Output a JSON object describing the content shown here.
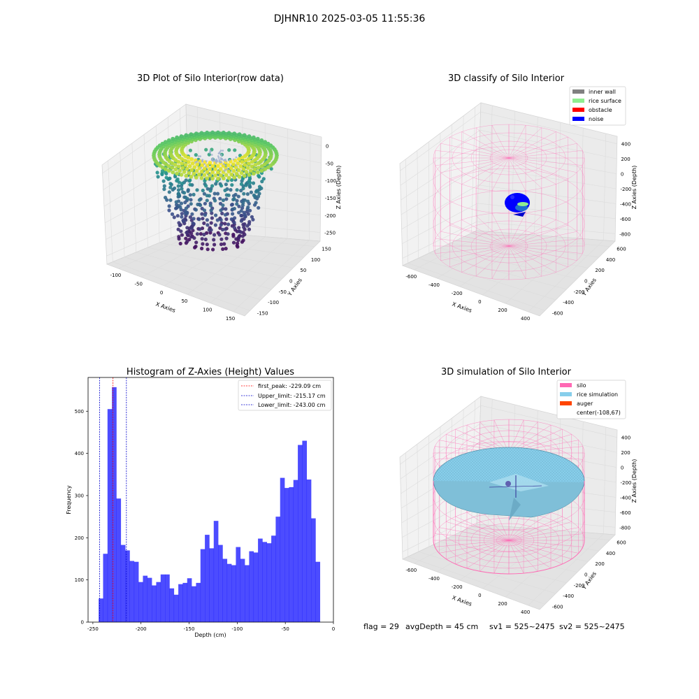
{
  "figure": {
    "suptitle": "DJHNR10 2025-03-05 11:55:36",
    "status": {
      "flag": "flag = 29",
      "avg_depth": "avgDepth = 45 cm",
      "sv1": "sv1 = 525~2475",
      "sv2": "sv2 = 525~2475"
    }
  },
  "chart_data": [
    {
      "type": "scatter3d",
      "title": "3D Plot of Silo Interior(row data)",
      "xlabel": "X Axies",
      "ylabel": "Y Axies",
      "zlabel": "Z Axies (Depth)",
      "xticks": [
        "-100",
        "-50",
        "0",
        "50",
        "100",
        "150"
      ],
      "yticks": [
        "150",
        "100",
        "50",
        "0",
        "-50",
        "-100",
        "-150"
      ],
      "zticks": [
        "0",
        "-50",
        "-100",
        "-150",
        "-200",
        "-250"
      ],
      "xlim": [
        -125,
        165
      ],
      "ylim": [
        -160,
        160
      ],
      "zlim": [
        -260,
        0
      ],
      "colormap": "viridis"
    },
    {
      "type": "scatter3d",
      "title": "3D classify of Silo Interior",
      "xlabel": "X Axies",
      "ylabel": "Y Axies",
      "zlabel": "Z Axies (Depth)",
      "xticks": [
        "-600",
        "-400",
        "-200",
        "0",
        "200",
        "400"
      ],
      "yticks": [
        "600",
        "400",
        "200",
        "0",
        "-200",
        "-400",
        "-600"
      ],
      "zticks": [
        "400",
        "200",
        "0",
        "-200",
        "-400",
        "-600",
        "-800"
      ],
      "legend": [
        {
          "label": "inner wall",
          "color": "#808080"
        },
        {
          "label": "rice surface",
          "color": "#90ee90"
        },
        {
          "label": "obstacle",
          "color": "#ff0000"
        },
        {
          "label": "noise",
          "color": "#0000ff"
        }
      ],
      "legend_position": "top-right",
      "wireframe_color": "#ff69b4"
    },
    {
      "type": "bar",
      "title": "Histogram of Z-Axies (Height) Values",
      "xlabel": "Depth (cm)",
      "ylabel": "Frequency",
      "xlim": [
        -255,
        0
      ],
      "ylim": [
        0,
        580
      ],
      "xticks": [
        -250,
        -200,
        -150,
        -100,
        -50,
        0
      ],
      "yticks": [
        0,
        100,
        200,
        300,
        400,
        500
      ],
      "bin_start": -244,
      "bin_width": 4.6,
      "values": [
        56,
        162,
        505,
        557,
        293,
        183,
        170,
        145,
        143,
        95,
        110,
        105,
        87,
        95,
        113,
        113,
        80,
        65,
        90,
        93,
        104,
        85,
        93,
        173,
        207,
        175,
        240,
        183,
        150,
        138,
        135,
        178,
        150,
        135,
        168,
        165,
        198,
        190,
        187,
        205,
        250,
        342,
        318,
        320,
        337,
        420,
        430,
        338,
        246,
        143
      ],
      "color": "#0000ff",
      "vlines": [
        {
          "label": "first_peak: -229.09 cm",
          "x": -229.09,
          "color": "#ff0000"
        },
        {
          "label": "Upper_limit: -215.17 cm",
          "x": -215.17,
          "color": "#0000cc"
        },
        {
          "label": "Lower_limit: -243.00 cm",
          "x": -243.0,
          "color": "#0000cc"
        }
      ],
      "legend_position": "top-right"
    },
    {
      "type": "surface3d",
      "title": "3D simulation of Silo Interior",
      "xlabel": "X Axies",
      "ylabel": "Y Axies",
      "zlabel": "Z Axies (Depth)",
      "xticks": [
        "-600",
        "-400",
        "-200",
        "0",
        "200",
        "400"
      ],
      "yticks": [
        "600",
        "400",
        "200",
        "0",
        "-200",
        "-400",
        "-600"
      ],
      "zticks": [
        "400",
        "200",
        "0",
        "-200",
        "-400",
        "-600",
        "-800"
      ],
      "legend": [
        {
          "label": "silo",
          "color": "#ff69b4"
        },
        {
          "label": "rice simulation",
          "color": "#87ceeb"
        },
        {
          "label": "auger",
          "color": "#ff4500"
        },
        {
          "label": "center(-108,67)",
          "color": ""
        }
      ],
      "legend_position": "top-right"
    }
  ]
}
